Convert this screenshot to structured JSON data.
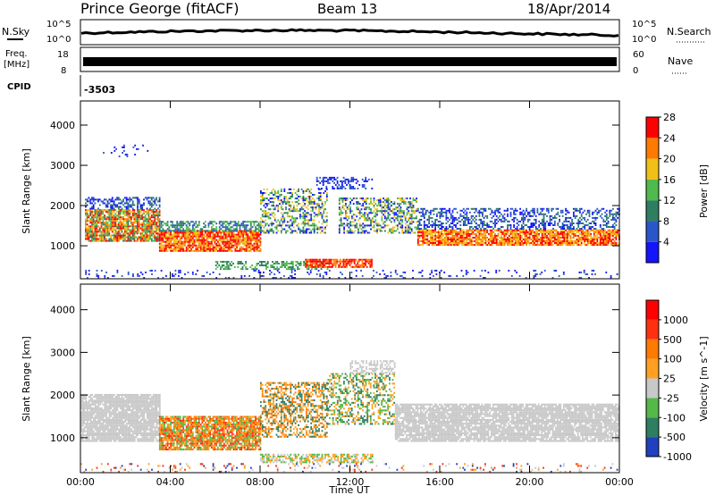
{
  "header": {
    "station": "Prince George (fitACF)",
    "beam": "Beam 13",
    "date": "18/Apr/2014"
  },
  "strip_labels": {
    "nsky": "N.Sky",
    "nsky_ticks": [
      "10^5",
      "10^0"
    ],
    "nsearch": "N.Search",
    "nsearch_ticks": [
      "10^5",
      "10^0"
    ],
    "freq": "Freq.",
    "freq_unit": "[MHz]",
    "freq_ticks": [
      "18",
      "8"
    ],
    "nave": "Nave",
    "nave_ticks": [
      "60",
      "0"
    ],
    "cpid": "CPID",
    "cpid_value": "-3503"
  },
  "colors": {
    "noise_line": "#000000",
    "ground_scatter": "#c8c8c8",
    "background": "#ffffff"
  },
  "chart_data": [
    {
      "type": "heatmap",
      "panel": "power",
      "ylabel": "Slant Range [km]",
      "xlabel": "",
      "x_ticks": [
        "00:00",
        "04:00",
        "08:00",
        "12:00",
        "16:00",
        "20:00",
        "00:00"
      ],
      "x_range_hours": [
        0,
        24
      ],
      "y_ticks": [
        1000,
        2000,
        3000,
        4000
      ],
      "ylim": [
        180,
        4600
      ],
      "colorbar": {
        "label": "Power [dB]",
        "ticks": [
          "4",
          "8",
          "12",
          "16",
          "20",
          "24",
          "28"
        ],
        "colors": [
          "#1414ff",
          "#2b56c9",
          "#2e7e62",
          "#4fba4c",
          "#f0c018",
          "#ff7a00",
          "#ff0000"
        ]
      }
    },
    {
      "type": "heatmap",
      "panel": "velocity",
      "ylabel": "Slant Range [km]",
      "xlabel": "Time UT",
      "x_ticks": [
        "00:00",
        "04:00",
        "08:00",
        "12:00",
        "16:00",
        "20:00",
        "00:00"
      ],
      "x_range_hours": [
        0,
        24
      ],
      "y_ticks": [
        1000,
        2000,
        3000,
        4000
      ],
      "ylim": [
        180,
        4600
      ],
      "colorbar": {
        "label": "Velocity [m s^-1]",
        "ticks": [
          "1000",
          "500",
          "100",
          "25",
          "-25",
          "-100",
          "-500",
          "-1000"
        ],
        "colors": [
          "#2040c0",
          "#2e7e62",
          "#54b848",
          "#c8c8c8",
          "#ffa020",
          "#ff7a00",
          "#ff3010",
          "#ff0000"
        ]
      }
    }
  ]
}
